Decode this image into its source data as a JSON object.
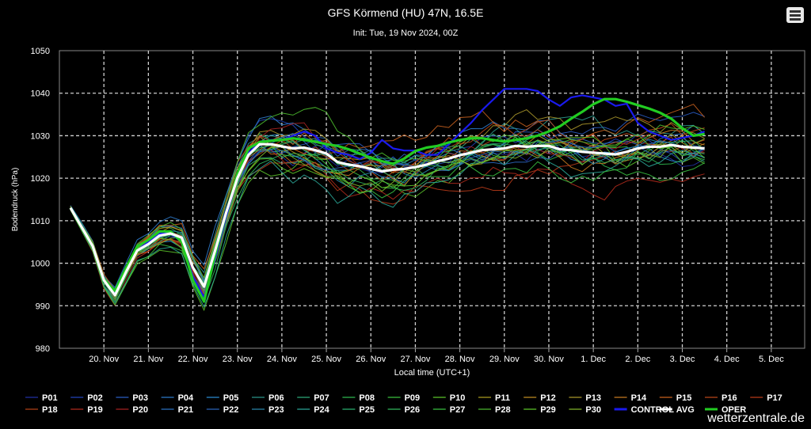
{
  "title": "GFS Körmend (HU) 47N, 16.5E",
  "subtitle": "Init: Tue, 19 Nov 2024, 00Z",
  "menu_icon": "hamburger-menu-icon",
  "watermark": "wetterzentrale.de",
  "chart_data": {
    "type": "line",
    "xlabel": "Local time (UTC+1)",
    "ylabel": "Bodendruck (hPa)",
    "ylim": [
      980,
      1050
    ],
    "yticks": [
      980,
      990,
      1000,
      1010,
      1020,
      1030,
      1040,
      1050
    ],
    "xlim_hours": [
      0,
      402
    ],
    "time_step_hours": 6,
    "x_tick_hours": [
      24,
      48,
      72,
      96,
      120,
      144,
      168,
      192,
      216,
      240,
      264,
      288,
      312,
      336,
      360,
      384
    ],
    "x_tick_labels": [
      "20. Nov",
      "21. Nov",
      "22. Nov",
      "23. Nov",
      "24. Nov",
      "25. Nov",
      "26. Nov",
      "27. Nov",
      "28. Nov",
      "29. Nov",
      "30. Nov",
      "1. Dec",
      "2. Dec",
      "3. Dec",
      "4. Dec",
      "5. Dec"
    ],
    "grid": true,
    "legend_position": "bottom",
    "series": [
      {
        "name": "AVG",
        "color": "#ffffff",
        "width": 3.2,
        "values": [
          1013.0,
          1008.5,
          1004.0,
          996.0,
          992.5,
          998.0,
          1003.0,
          1004.5,
          1006.5,
          1007.0,
          1006.0,
          999.0,
          994.5,
          1003.0,
          1012.0,
          1020.0,
          1025.5,
          1028.0,
          1028.0,
          1027.5,
          1027.0,
          1027.2,
          1026.6,
          1025.8,
          1023.8,
          1023.2,
          1022.8,
          1022.2,
          1021.6,
          1022.0,
          1022.2,
          1022.6,
          1023.2,
          1024.0,
          1024.6,
          1025.4,
          1026.0,
          1026.6,
          1026.8,
          1027.0,
          1027.6,
          1027.4,
          1027.6,
          1027.6,
          1026.8,
          1026.6,
          1026.2,
          1026.0,
          1025.8,
          1025.6,
          1026.2,
          1027.0,
          1027.4,
          1027.4,
          1027.8,
          1027.4,
          1027.2,
          1027.0
        ]
      },
      {
        "name": "OPER",
        "color": "#22cc22",
        "width": 3.2,
        "values": [
          1013.0,
          1008.5,
          1004.0,
          996.0,
          993.5,
          999.0,
          1004.0,
          1005.5,
          1007.5,
          1007.5,
          1005.0,
          996.0,
          991.0,
          1002.0,
          1012.0,
          1021.0,
          1027.0,
          1028.5,
          1028.8,
          1029.0,
          1029.4,
          1029.0,
          1028.6,
          1028.0,
          1027.6,
          1026.8,
          1025.8,
          1024.8,
          1024.0,
          1023.4,
          1024.6,
          1026.4,
          1027.2,
          1027.6,
          1028.4,
          1029.0,
          1029.4,
          1029.4,
          1029.0,
          1028.6,
          1029.0,
          1029.4,
          1030.0,
          1031.0,
          1032.2,
          1034.0,
          1035.6,
          1037.4,
          1038.6,
          1038.6,
          1038.0,
          1037.2,
          1036.4,
          1035.4,
          1034.0,
          1031.8,
          1030.0,
          1030.4
        ]
      },
      {
        "name": "CONTROL",
        "color": "#1a1aee",
        "width": 2.2,
        "values": [
          1013.0,
          1008.5,
          1004.0,
          996.0,
          993.0,
          998.0,
          1003.0,
          1005.0,
          1007.0,
          1007.0,
          1005.0,
          997.0,
          992.0,
          1001.0,
          1011.0,
          1020.0,
          1026.0,
          1028.5,
          1029.0,
          1029.0,
          1030.0,
          1031.0,
          1030.0,
          1027.0,
          1026.0,
          1025.5,
          1024.5,
          1026.0,
          1029.0,
          1027.0,
          1026.5,
          1026.5,
          1025.5,
          1025.5,
          1028.0,
          1030.5,
          1033.0,
          1036.0,
          1038.5,
          1041.0,
          1041.0,
          1041.0,
          1040.5,
          1038.5,
          1037.0,
          1039.0,
          1039.5,
          1039.0,
          1038.5,
          1037.0,
          1037.5,
          1033.0,
          1031.0,
          1030.0,
          1029.0,
          1029.5,
          1030.0,
          1031.0
        ]
      }
    ],
    "legend": [
      {
        "name": "P01",
        "color": "#2233aa"
      },
      {
        "name": "P02",
        "color": "#2244bb"
      },
      {
        "name": "P03",
        "color": "#2a5cc4"
      },
      {
        "name": "P04",
        "color": "#2e79c9"
      },
      {
        "name": "P05",
        "color": "#2a8ad0"
      },
      {
        "name": "P06",
        "color": "#2b9a8e"
      },
      {
        "name": "P07",
        "color": "#2da878"
      },
      {
        "name": "P08",
        "color": "#2fb84f"
      },
      {
        "name": "P09",
        "color": "#3ac03c"
      },
      {
        "name": "P10",
        "color": "#5bc22a"
      },
      {
        "name": "P11",
        "color": "#b0a020"
      },
      {
        "name": "P12",
        "color": "#c08d22"
      },
      {
        "name": "P13",
        "color": "#a8962a"
      },
      {
        "name": "P14",
        "color": "#c57a20"
      },
      {
        "name": "P15",
        "color": "#c8611e"
      },
      {
        "name": "P16",
        "color": "#c04a1a"
      },
      {
        "name": "P17",
        "color": "#b83a18"
      },
      {
        "name": "P18",
        "color": "#b84418"
      },
      {
        "name": "P19",
        "color": "#b02a1c"
      },
      {
        "name": "P20",
        "color": "#a62222"
      },
      {
        "name": "P21",
        "color": "#2a70c0"
      },
      {
        "name": "P22",
        "color": "#2a64b8"
      },
      {
        "name": "P23",
        "color": "#2a8bb0"
      },
      {
        "name": "P24",
        "color": "#2aa596"
      },
      {
        "name": "P25",
        "color": "#2ab070"
      },
      {
        "name": "P26",
        "color": "#30b85c"
      },
      {
        "name": "P27",
        "color": "#38c040"
      },
      {
        "name": "P28",
        "color": "#4cbe2e"
      },
      {
        "name": "P29",
        "color": "#5ec628"
      },
      {
        "name": "P30",
        "color": "#7fb42a"
      },
      {
        "name": "CONTROL",
        "color": "#1a1aee"
      },
      {
        "name": "AVG",
        "color": "#ffffff"
      },
      {
        "name": "OPER",
        "color": "#22cc22"
      }
    ]
  }
}
